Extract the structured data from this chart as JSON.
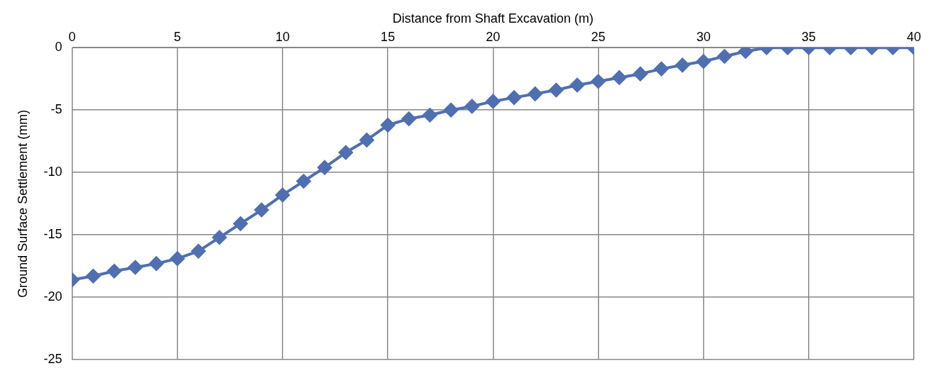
{
  "chart_data": {
    "type": "line",
    "xlabel": "Distance from Shaft Excavation (m)",
    "ylabel": "Ground Surface Settlement (mm)",
    "x": [
      0,
      1,
      2,
      3,
      4,
      5,
      6,
      7,
      8,
      9,
      10,
      11,
      12,
      13,
      14,
      15,
      16,
      17,
      18,
      19,
      20,
      21,
      22,
      23,
      24,
      25,
      26,
      27,
      28,
      29,
      30,
      31,
      32,
      33,
      34,
      35,
      36,
      37,
      38,
      39,
      40
    ],
    "series": [
      {
        "color": "#4f6fb0",
        "values": [
          -18.6,
          -18.3,
          -17.9,
          -17.6,
          -17.3,
          -16.9,
          -16.3,
          -15.2,
          -14.1,
          -13.0,
          -11.8,
          -10.7,
          -9.6,
          -8.4,
          -7.4,
          -6.2,
          -5.7,
          -5.4,
          -5.0,
          -4.7,
          -4.3,
          -4.0,
          -3.7,
          -3.4,
          -3.0,
          -2.7,
          -2.4,
          -2.1,
          -1.7,
          -1.4,
          -1.1,
          -0.7,
          -0.3,
          0,
          0,
          0,
          0,
          0,
          0,
          0,
          0
        ]
      }
    ],
    "xlim": [
      0,
      40
    ],
    "xticks": [
      0,
      5,
      10,
      15,
      20,
      25,
      30,
      35,
      40
    ],
    "ylim": [
      -25,
      0
    ],
    "yticks": [
      0,
      -5,
      -10,
      -15,
      -20,
      -25
    ],
    "grid": true,
    "marker": "diamond",
    "line_style": "solid"
  }
}
